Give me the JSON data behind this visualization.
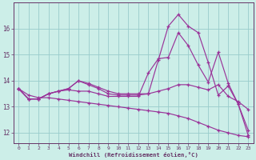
{
  "xlabel": "Windchill (Refroidissement éolien,°C)",
  "bg_color": "#cceee8",
  "line_color": "#993399",
  "grid_color": "#99cccc",
  "axis_color": "#663366",
  "series": [
    [
      13.7,
      13.3,
      13.3,
      13.5,
      13.6,
      13.7,
      14.0,
      13.85,
      13.7,
      13.5,
      13.45,
      13.45,
      13.45,
      13.5,
      14.8,
      16.1,
      16.55,
      16.1,
      15.85,
      14.7,
      13.45,
      13.8,
      13.1,
      11.9
    ],
    [
      13.7,
      13.3,
      13.3,
      13.5,
      13.6,
      13.65,
      13.6,
      13.6,
      13.5,
      13.4,
      13.4,
      13.4,
      13.4,
      14.3,
      14.85,
      14.9,
      15.85,
      15.35,
      14.6,
      13.95,
      15.1,
      13.9,
      13.1,
      12.1
    ],
    [
      13.7,
      13.3,
      13.3,
      13.5,
      13.6,
      13.7,
      14.0,
      13.9,
      13.75,
      13.6,
      13.5,
      13.5,
      13.5,
      13.5,
      13.6,
      13.7,
      13.85,
      13.85,
      13.75,
      13.65,
      13.85,
      13.4,
      13.2,
      12.9
    ],
    [
      13.7,
      13.45,
      13.35,
      13.35,
      13.3,
      13.25,
      13.2,
      13.15,
      13.1,
      13.05,
      13.0,
      12.95,
      12.9,
      12.85,
      12.8,
      12.75,
      12.65,
      12.55,
      12.4,
      12.25,
      12.1,
      12.0,
      11.9,
      11.85
    ]
  ],
  "x": [
    0,
    1,
    2,
    3,
    4,
    5,
    6,
    7,
    8,
    9,
    10,
    11,
    12,
    13,
    14,
    15,
    16,
    17,
    18,
    19,
    20,
    21,
    22,
    23
  ],
  "ylim": [
    11.6,
    17.0
  ],
  "yticks": [
    12,
    13,
    14,
    15,
    16
  ],
  "xticks": [
    0,
    1,
    2,
    3,
    4,
    5,
    6,
    7,
    8,
    9,
    10,
    11,
    12,
    13,
    14,
    15,
    16,
    17,
    18,
    19,
    20,
    21,
    22,
    23
  ]
}
